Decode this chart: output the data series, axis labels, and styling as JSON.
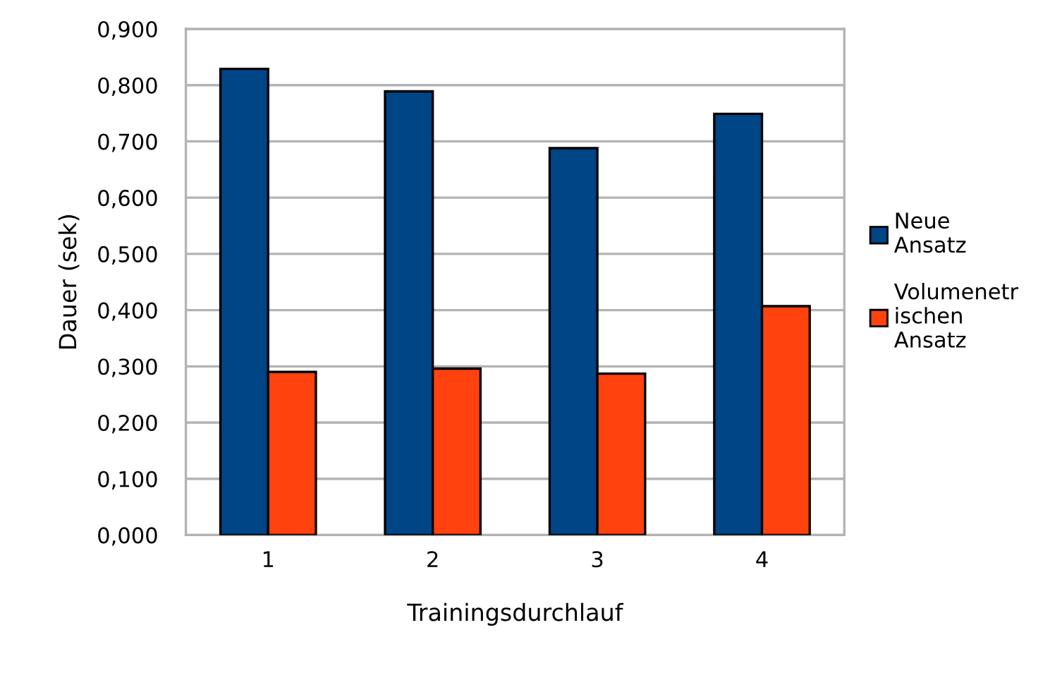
{
  "chart_data": {
    "type": "bar",
    "xlabel": "Trainingsdurchlauf",
    "ylabel": "Dauer (sek)",
    "categories": [
      "1",
      "2",
      "3",
      "4"
    ],
    "series": [
      {
        "name": "Neue\nAnsatz",
        "color": "#004586",
        "values": [
          0.829,
          0.789,
          0.688,
          0.749
        ]
      },
      {
        "name": "Volumenetr\nischen\nAnsatz",
        "color": "#ff420e",
        "values": [
          0.29,
          0.296,
          0.287,
          0.407
        ]
      }
    ],
    "ylim": [
      0,
      0.9
    ],
    "yticks": [
      {
        "value": 0,
        "label": "0,000"
      },
      {
        "value": 0.1,
        "label": "0,100"
      },
      {
        "value": 0.2,
        "label": "0,200"
      },
      {
        "value": 0.3,
        "label": "0,300"
      },
      {
        "value": 0.4,
        "label": "0,400"
      },
      {
        "value": 0.5,
        "label": "0,500"
      },
      {
        "value": 0.6,
        "label": "0,600"
      },
      {
        "value": 0.7,
        "label": "0,700"
      },
      {
        "value": 0.8,
        "label": "0,800"
      },
      {
        "value": 0.9,
        "label": "0,900"
      }
    ],
    "grid": "y",
    "legend": "right"
  }
}
